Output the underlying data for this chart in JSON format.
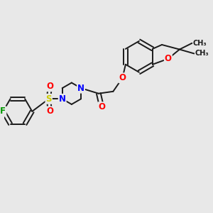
{
  "bg_color": "#e8e8e8",
  "bond_color": "#1a1a1a",
  "atom_colors": {
    "O": "#ff0000",
    "N": "#0000ff",
    "S": "#cccc00",
    "F": "#009900",
    "C": "#1a1a1a"
  },
  "font_size_atom": 8.5,
  "font_size_me": 7.0,
  "line_width": 1.4
}
